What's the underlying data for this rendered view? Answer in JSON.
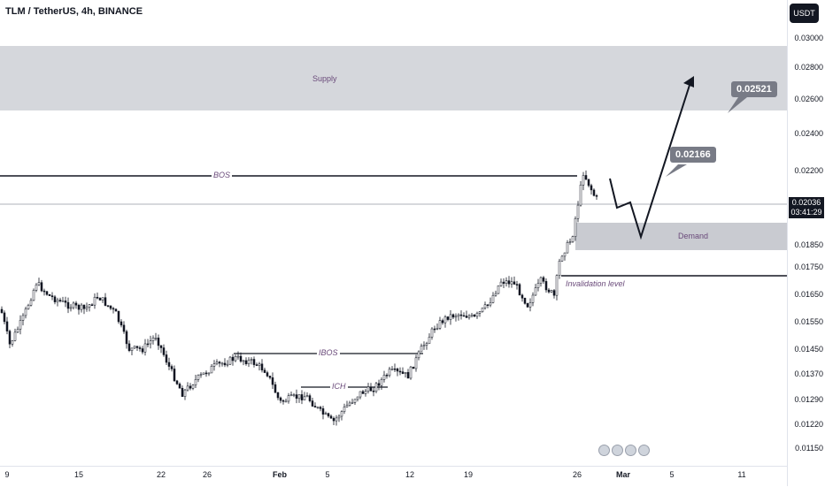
{
  "header": {
    "title": "TLM / TetherUS, 4h, BINANCE"
  },
  "axis": {
    "unit": "USDT",
    "price_ticks": [
      "0.03000",
      "0.02800",
      "0.02600",
      "0.02400",
      "0.02200",
      "0.02036",
      "0.01850",
      "0.01750",
      "0.01650",
      "0.01550",
      "0.01450",
      "0.01370",
      "0.01290",
      "0.01220",
      "0.01150"
    ],
    "current_price": "0.02036",
    "countdown": "03:41:29",
    "date_ticks": [
      "9",
      "15",
      "22",
      "26",
      "Feb",
      "5",
      "12",
      "19",
      "26",
      "Mar",
      "5",
      "11"
    ]
  },
  "annotations": {
    "supply": "Supply",
    "demand": "Demand",
    "bos": "BOS",
    "ibos": "IBOS",
    "ich": "ICH",
    "invalidation": "Invalidation level",
    "target1": "0.02166",
    "target2": "0.02521"
  },
  "colors": {
    "zone": "#c9cbd1",
    "callout": "#787b86",
    "candle": "#131722"
  },
  "chart_data": {
    "type": "candlestick",
    "symbol": "TLM / TetherUS",
    "interval": "4h",
    "exchange": "BINANCE",
    "last_price": 0.02036,
    "zones": [
      {
        "name": "Supply",
        "low": 0.0256,
        "high": 0.0294
      },
      {
        "name": "Demand",
        "low": 0.0183,
        "high": 0.0199
      }
    ],
    "levels": [
      {
        "name": "BOS",
        "value": 0.02185
      },
      {
        "name": "IBOS",
        "value": 0.01441
      },
      {
        "name": "ICH",
        "value": 0.01338
      },
      {
        "name": "Invalidation level",
        "value": 0.01715
      }
    ],
    "targets": [
      0.02166,
      0.02521
    ]
  }
}
